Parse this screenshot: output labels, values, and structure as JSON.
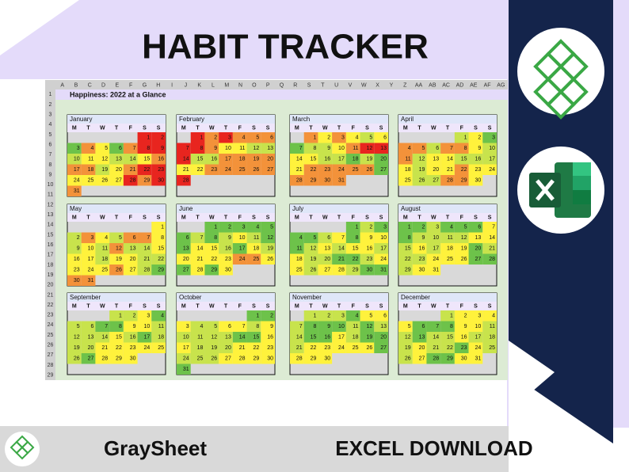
{
  "header": {
    "title": "HABIT TRACKER"
  },
  "sheet": {
    "column_headers": [
      "A",
      "B",
      "C",
      "D",
      "E",
      "F",
      "G",
      "H",
      "I",
      "J",
      "K",
      "L",
      "M",
      "N",
      "O",
      "P",
      "Q",
      "R",
      "S",
      "T",
      "U",
      "V",
      "W",
      "X",
      "Y",
      "Z",
      "AA",
      "AB",
      "AC",
      "AD",
      "AE",
      "AF",
      "AG"
    ],
    "row_numbers": [
      1,
      2,
      3,
      4,
      5,
      6,
      7,
      8,
      9,
      10,
      11,
      12,
      13,
      14,
      15,
      16,
      17,
      18,
      19,
      20,
      21,
      22,
      23,
      24,
      25,
      26,
      27,
      28,
      29
    ],
    "title": "Happiness: 2022 at a Glance",
    "weekdays": [
      "M",
      "T",
      "W",
      "T",
      "F",
      "S",
      "S"
    ],
    "palette": {
      "R": "#e8251f",
      "O": "#f3923a",
      "Y": "#fff23c",
      "L": "#c8e34c",
      "G": "#6dc24a"
    },
    "months": [
      {
        "name": "January",
        "cells": [
          null,
          null,
          null,
          null,
          null,
          1,
          2,
          3,
          4,
          5,
          6,
          7,
          8,
          9,
          10,
          11,
          12,
          13,
          14,
          15,
          16,
          17,
          18,
          19,
          20,
          21,
          22,
          23,
          24,
          25,
          26,
          27,
          28,
          29,
          30,
          31
        ],
        "colors": "RRGOYGORRLYYLLYOOOLYORRYYYYRORO"
      },
      {
        "name": "February",
        "cells": [
          null,
          1,
          2,
          3,
          4,
          5,
          6,
          7,
          8,
          9,
          10,
          11,
          12,
          13,
          14,
          15,
          16,
          17,
          18,
          19,
          20,
          21,
          22,
          23,
          24,
          25,
          26,
          27,
          28
        ],
        "colors": "ROROOORROYYLLRLLOOOOYYOOOOOR"
      },
      {
        "name": "March",
        "cells": [
          null,
          1,
          2,
          3,
          4,
          5,
          6,
          7,
          8,
          9,
          10,
          11,
          12,
          13,
          14,
          15,
          16,
          17,
          18,
          19,
          20,
          21,
          22,
          23,
          24,
          25,
          26,
          27,
          28,
          29,
          30,
          31
        ],
        "colors": "OYOYLYGLLYORRYYLLGLGYOOOOOGOOOO"
      },
      {
        "name": "April",
        "cells": [
          null,
          null,
          null,
          null,
          1,
          2,
          3,
          4,
          5,
          6,
          7,
          8,
          9,
          10,
          11,
          12,
          13,
          14,
          15,
          16,
          17,
          18,
          19,
          20,
          21,
          22,
          23,
          24,
          25,
          26,
          27,
          28,
          29,
          30
        ],
        "colors": "LYGOOLOOYLOLYYLLLYLYYOYYYLLOOY"
      },
      {
        "name": "May",
        "cells": [
          null,
          null,
          null,
          null,
          null,
          null,
          1,
          2,
          3,
          4,
          5,
          6,
          7,
          8,
          9,
          10,
          11,
          12,
          13,
          14,
          15,
          16,
          17,
          18,
          19,
          20,
          21,
          22,
          23,
          24,
          25,
          26,
          27,
          28,
          29,
          30,
          31
        ],
        "colors": "YLOYLOOYLYLOLLYYYLYYLLYYYOYLGOO"
      },
      {
        "name": "June",
        "cells": [
          null,
          null,
          1,
          2,
          3,
          4,
          5,
          6,
          7,
          8,
          9,
          10,
          11,
          12,
          13,
          14,
          15,
          16,
          17,
          18,
          19,
          20,
          21,
          22,
          23,
          24,
          25,
          26,
          27,
          28,
          29,
          30
        ],
        "colors": "GGGGGGLGLYLGGYYLGYLYYYYOOYGYGY"
      },
      {
        "name": "July",
        "cells": [
          null,
          null,
          null,
          null,
          1,
          2,
          3,
          4,
          5,
          6,
          7,
          8,
          9,
          10,
          11,
          12,
          13,
          14,
          15,
          16,
          17,
          18,
          19,
          20,
          21,
          22,
          23,
          24,
          25,
          26,
          27,
          28,
          29,
          30,
          31
        ],
        "colors": "GLGGGLYGYYGLYLYYLYLLGGLYYLYYLGG"
      },
      {
        "name": "August",
        "cells": [
          1,
          2,
          3,
          4,
          5,
          6,
          7,
          8,
          9,
          10,
          11,
          12,
          13,
          14,
          15,
          16,
          17,
          18,
          19,
          20,
          21,
          22,
          23,
          24,
          25,
          26,
          27,
          28,
          29,
          30,
          31
        ],
        "colors": "GGLGGGYGLLLLYYLYLYYGLLLYYYGGLYY"
      },
      {
        "name": "September",
        "cells": [
          null,
          null,
          null,
          1,
          2,
          3,
          4,
          5,
          6,
          7,
          8,
          9,
          10,
          11,
          12,
          13,
          14,
          15,
          16,
          17,
          18,
          19,
          20,
          21,
          22,
          23,
          24,
          25,
          26,
          27,
          28,
          29,
          30
        ],
        "colors": "LLYGLLGGYYLLLLYLGLLLYYYYYLGYYY"
      },
      {
        "name": "October",
        "cells": [
          null,
          null,
          null,
          null,
          null,
          1,
          2,
          3,
          4,
          5,
          6,
          7,
          8,
          9,
          10,
          11,
          12,
          13,
          14,
          15,
          16,
          17,
          18,
          19,
          20,
          21,
          22,
          23,
          24,
          25,
          26,
          27,
          28,
          29,
          30,
          31
        ],
        "colors": "GGYLLYYLYLLLLGGYYLLLYYYLLLYYYYG"
      },
      {
        "name": "November",
        "cells": [
          null,
          1,
          2,
          3,
          4,
          5,
          6,
          7,
          8,
          9,
          10,
          11,
          12,
          13,
          14,
          15,
          16,
          17,
          18,
          19,
          20,
          21,
          22,
          23,
          24,
          25,
          26,
          27,
          28,
          29,
          30
        ],
        "colors": "LLLGYYLGGGLGLLGGYLGGLYYYYYGYYY"
      },
      {
        "name": "December",
        "cells": [
          null,
          null,
          null,
          1,
          2,
          3,
          4,
          5,
          6,
          7,
          8,
          9,
          10,
          11,
          12,
          13,
          14,
          15,
          16,
          17,
          18,
          19,
          20,
          21,
          22,
          23,
          24,
          25,
          26,
          27,
          28,
          29,
          30,
          31
        ],
        "colors": "LYYYYGGGYYLLGLLYLLLYLLGYLLYGGYY"
      }
    ]
  },
  "footer": {
    "brand": "GraySheet",
    "cta": "EXCEL DOWNLOAD"
  }
}
